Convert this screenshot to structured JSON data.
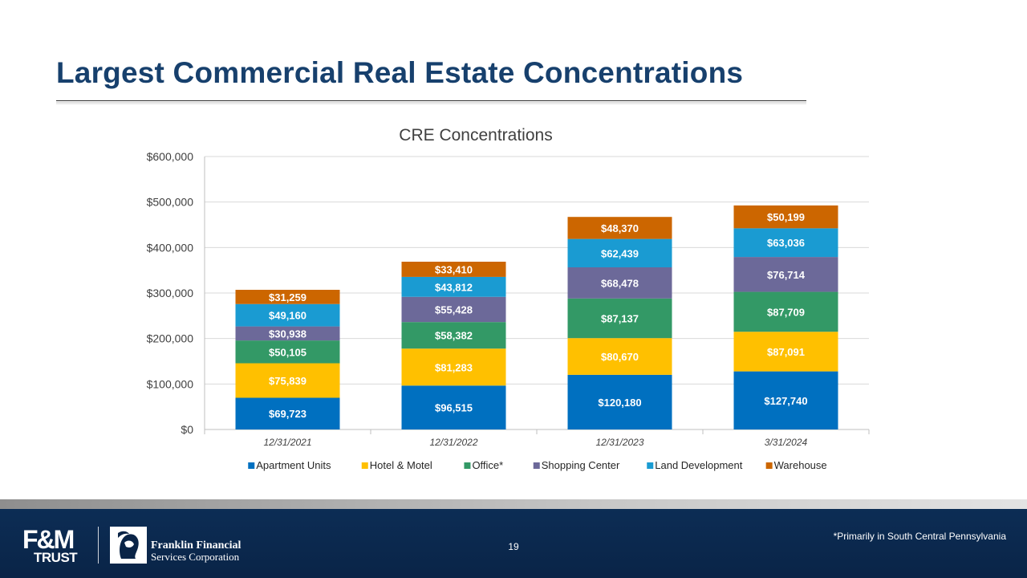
{
  "slide": {
    "title": "Largest Commercial Real Estate Concentrations",
    "page_number": "19",
    "footnote": "*Primarily in South Central Pennsylvania"
  },
  "logos": {
    "fm_line1": "F&M",
    "fm_line2": "TRUST",
    "ff_line1": "Franklin Financial",
    "ff_line2": "Services Corporation"
  },
  "chart_data": {
    "type": "bar",
    "stacked": true,
    "title": "CRE Concentrations",
    "xlabel": "",
    "ylabel": "",
    "ylim": [
      0,
      600000
    ],
    "yticks": [
      0,
      100000,
      200000,
      300000,
      400000,
      500000,
      600000
    ],
    "ytick_labels": [
      "$0",
      "$100,000",
      "$200,000",
      "$300,000",
      "$400,000",
      "$500,000",
      "$600,000"
    ],
    "categories": [
      "12/31/2021",
      "12/31/2022",
      "12/31/2023",
      "3/31/2024"
    ],
    "legend_position": "bottom",
    "grid": true,
    "series": [
      {
        "name": "Apartment Units",
        "color": "#0070c0",
        "values": [
          69723,
          96515,
          120180,
          127740
        ],
        "labels": [
          "$69,723",
          "$96,515",
          "$120,180",
          "$127,740"
        ]
      },
      {
        "name": "Hotel & Motel",
        "color": "#ffc000",
        "values": [
          75839,
          81283,
          80670,
          87091
        ],
        "labels": [
          "$75,839",
          "$81,283",
          "$80,670",
          "$87,091"
        ]
      },
      {
        "name": "Office*",
        "color": "#339966",
        "values": [
          50105,
          58382,
          87137,
          87709
        ],
        "labels": [
          "$50,105",
          "$58,382",
          "$87,137",
          "$87,709"
        ]
      },
      {
        "name": "Shopping Center",
        "color": "#6c6999",
        "values": [
          30938,
          55428,
          68478,
          76714
        ],
        "labels": [
          "$30,938",
          "$55,428",
          "$68,478",
          "$76,714"
        ]
      },
      {
        "name": "Land Development",
        "color": "#1a9bd2",
        "values": [
          49160,
          43812,
          62439,
          63036
        ],
        "labels": [
          "$49,160",
          "$43,812",
          "$62,439",
          "$63,036"
        ]
      },
      {
        "name": "Warehouse",
        "color": "#cc6600",
        "values": [
          31259,
          33410,
          48370,
          50199
        ],
        "labels": [
          "$31,259",
          "$33,410",
          "$48,370",
          "$50,199"
        ]
      }
    ]
  }
}
